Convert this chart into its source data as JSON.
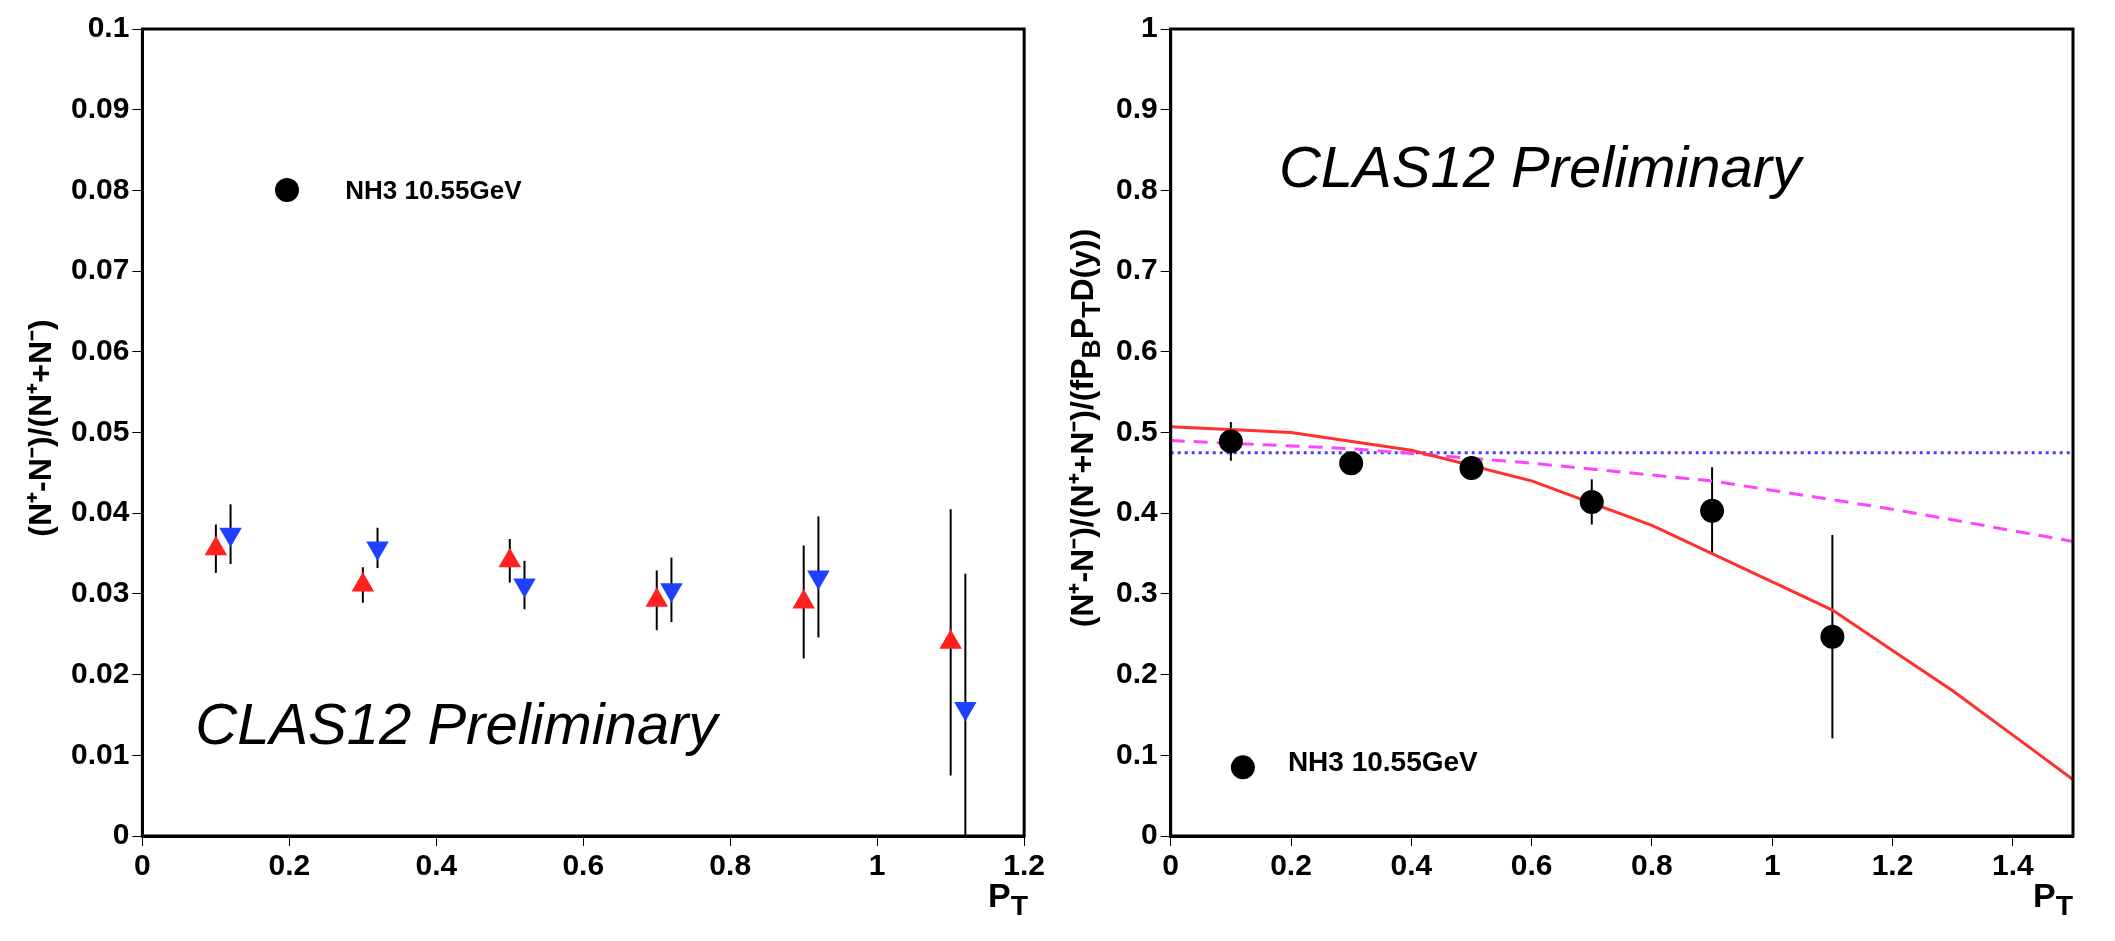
{
  "chart_data": [
    {
      "type": "scatter",
      "ylabel": "(N⁺-N⁻)/(N⁺+N⁻)",
      "xlabel": "P$_{T}$",
      "xlim": [
        0,
        1.2
      ],
      "xticks": [
        0,
        0.2,
        0.4,
        0.6,
        0.8,
        1,
        1.2
      ],
      "ylim": [
        0,
        0.1
      ],
      "yticks": [
        0,
        0.01,
        0.02,
        0.03,
        0.04,
        0.05,
        0.06,
        0.07,
        0.08,
        0.09,
        0.1
      ],
      "grid": false,
      "annotations": [
        "NH3 10.55GeV",
        "CLAS12 Preliminary"
      ],
      "series": [
        {
          "color": "#ff2020",
          "marker": "triangle",
          "x": [
            0.1,
            0.3,
            0.5,
            0.7,
            0.9,
            1.1
          ],
          "values": [
            0.0356,
            0.0311,
            0.0341,
            0.0292,
            0.029,
            0.024
          ],
          "errors": [
            0.003,
            0.0022,
            0.0027,
            0.0037,
            0.007,
            0.0165
          ]
        },
        {
          "color": "#2040ff",
          "marker": "triangle-down",
          "x": [
            0.12,
            0.32,
            0.52,
            0.72,
            0.92,
            1.12
          ],
          "values": [
            0.0374,
            0.0357,
            0.0311,
            0.0305,
            0.0321,
            0.0158
          ],
          "errors": [
            0.0037,
            0.0025,
            0.003,
            0.004,
            0.0075,
            [
              0,
              0.0325
            ]
          ]
        }
      ]
    },
    {
      "type": "scatter",
      "ylabel": "(N⁺-N⁻)/(N⁺+N⁻)/(fP$_{B}$P$_{T}$D(y))",
      "xlabel": "P$_{T}$",
      "xlim": [
        0,
        1.5
      ],
      "xticks": [
        0,
        0.2,
        0.4,
        0.6,
        0.8,
        1,
        1.2,
        1.4
      ],
      "ylim": [
        0,
        1
      ],
      "yticks": [
        0,
        0.1,
        0.2,
        0.3,
        0.4,
        0.5,
        0.6,
        0.7,
        0.8,
        0.9,
        1
      ],
      "grid": false,
      "legend": "bottom left",
      "annotations": [
        "CLAS12 Preliminary"
      ],
      "ref_lines": [
        {
          "axis": "y",
          "value": 0.475,
          "color": "#4040ff",
          "line_style": "dotted"
        }
      ],
      "series": [
        {
          "name": "NH3 10.55GeV",
          "type": "scatter",
          "color": "#000000",
          "marker": "circle",
          "x": [
            0.1,
            0.3,
            0.5,
            0.7,
            0.9,
            1.1
          ],
          "values": [
            0.489,
            0.462,
            0.456,
            0.414,
            0.403,
            0.247
          ],
          "errors": [
            0.024,
            0.01,
            0.01,
            0.028,
            0.054,
            0.126
          ]
        },
        {
          "type": "line",
          "color": "#ff3030",
          "marker": "none",
          "line_style": "solid",
          "x": [
            0,
            0.2,
            0.4,
            0.6,
            0.8,
            1.0,
            1.1,
            1.2,
            1.3,
            1.4,
            1.5
          ],
          "values": [
            0.507,
            0.5,
            0.478,
            0.44,
            0.385,
            0.315,
            0.28,
            0.23,
            0.18,
            0.125,
            0.07
          ]
        },
        {
          "type": "line",
          "color": "#ff44ff",
          "marker": "none",
          "line_style": "dashed",
          "x": [
            0,
            0.3,
            0.6,
            0.9,
            1.2,
            1.5
          ],
          "values": [
            0.49,
            0.48,
            0.462,
            0.44,
            0.405,
            0.365
          ]
        }
      ]
    }
  ]
}
